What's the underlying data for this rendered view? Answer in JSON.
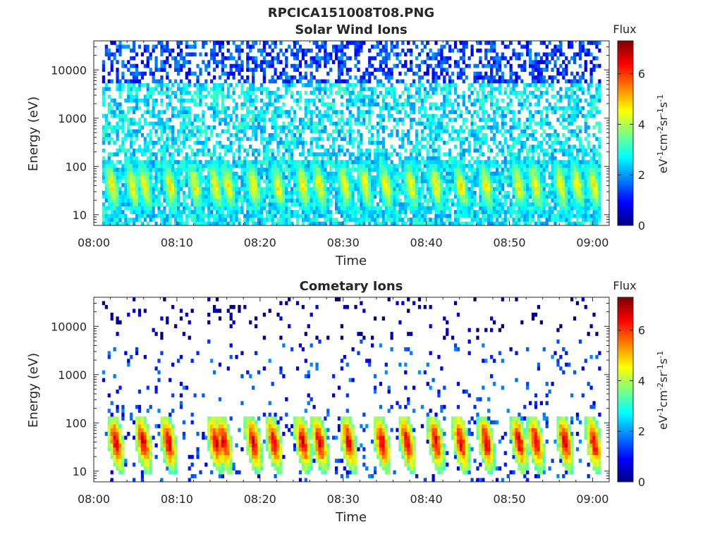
{
  "figure": {
    "title": "RPCICA151008T08.PNG"
  },
  "chart_data": [
    {
      "type": "heatmap",
      "title": "Solar Wind Ions",
      "xlabel": "Time",
      "ylabel": "Energy (eV)",
      "x_ticks": [
        "08:00",
        "08:10",
        "08:20",
        "08:30",
        "08:40",
        "08:50",
        "09:00"
      ],
      "x_range_minutes": [
        0,
        62
      ],
      "y_ticks": [
        "10",
        "100",
        "1000",
        "10000"
      ],
      "y_scale": "log",
      "y_range": [
        6,
        40000
      ],
      "colorbar": {
        "title": "Flux",
        "label": "eV-1cm-2sr-1s-1",
        "ticks": [
          "0",
          "2",
          "4",
          "6"
        ],
        "range": [
          0,
          7.3
        ],
        "colormap": "jet"
      },
      "background_level": 2.8,
      "noise_density": 0.55,
      "burst_minutes": [
        2,
        4.5,
        6,
        9,
        12,
        14.5,
        16,
        19,
        22,
        25,
        27,
        30,
        32.5,
        35,
        38,
        41,
        44,
        47,
        51,
        53,
        56,
        58,
        60
      ],
      "burst_peak": 4.6
    },
    {
      "type": "heatmap",
      "title": "Cometary Ions",
      "xlabel": "Time",
      "ylabel": "Energy (eV)",
      "x_ticks": [
        "08:00",
        "08:10",
        "08:20",
        "08:30",
        "08:40",
        "08:50",
        "09:00"
      ],
      "x_range_minutes": [
        0,
        62
      ],
      "y_ticks": [
        "10",
        "100",
        "1000",
        "10000"
      ],
      "y_scale": "log",
      "y_range": [
        6,
        40000
      ],
      "colorbar": {
        "title": "Flux",
        "label": "eV-1cm-2sr-1s-1",
        "ticks": [
          "0",
          "2",
          "4",
          "6"
        ],
        "range": [
          0,
          7.3
        ],
        "colormap": "jet"
      },
      "background_level": 1.5,
      "noise_density": 0.07,
      "burst_minutes": [
        2.5,
        5.8,
        8.8,
        14.5,
        15.5,
        19,
        21.5,
        25,
        27,
        30.5,
        34.5,
        37.5,
        41,
        44,
        47,
        51,
        53,
        56.5,
        60
      ],
      "burst_peak": 6.6
    }
  ]
}
